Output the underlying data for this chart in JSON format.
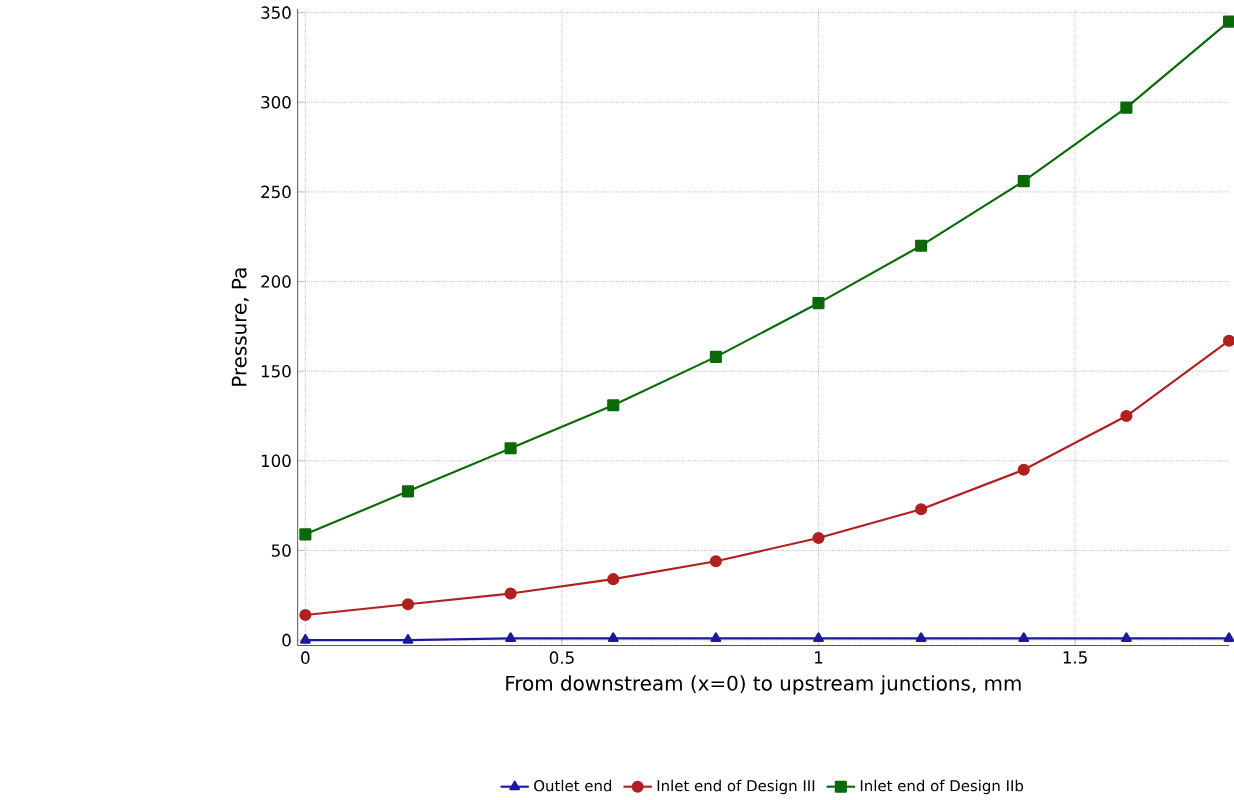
{
  "chart_data": {
    "type": "line",
    "xlabel": "From downstream (x=0) to upstream junctions, mm",
    "ylabel": "Pressure, Pa",
    "x": [
      0,
      0.2,
      0.4,
      0.6,
      0.8,
      1.0,
      1.2,
      1.4,
      1.6,
      1.8
    ],
    "xlim": [
      -0.015,
      1.8
    ],
    "ylim": [
      -3,
      352
    ],
    "xticks": [
      0,
      0.5,
      1,
      1.5
    ],
    "yticks": [
      0,
      50,
      100,
      150,
      200,
      250,
      300,
      350
    ],
    "grid": true,
    "legend": "bottom",
    "series": [
      {
        "name": "Outlet end",
        "color": "#1a1aa0",
        "marker": "triangle",
        "values": [
          0,
          0,
          1,
          1,
          1,
          1,
          1,
          1,
          1,
          1
        ]
      },
      {
        "name": "Inlet end of Design III",
        "color": "#b02020",
        "marker": "circle",
        "values": [
          14,
          20,
          26,
          34,
          44,
          57,
          73,
          95,
          125,
          167
        ]
      },
      {
        "name": "Inlet end of Design IIb",
        "color": "#0a6a0a",
        "marker": "square",
        "values": [
          59,
          83,
          107,
          131,
          158,
          188,
          220,
          256,
          297,
          345
        ]
      }
    ]
  }
}
